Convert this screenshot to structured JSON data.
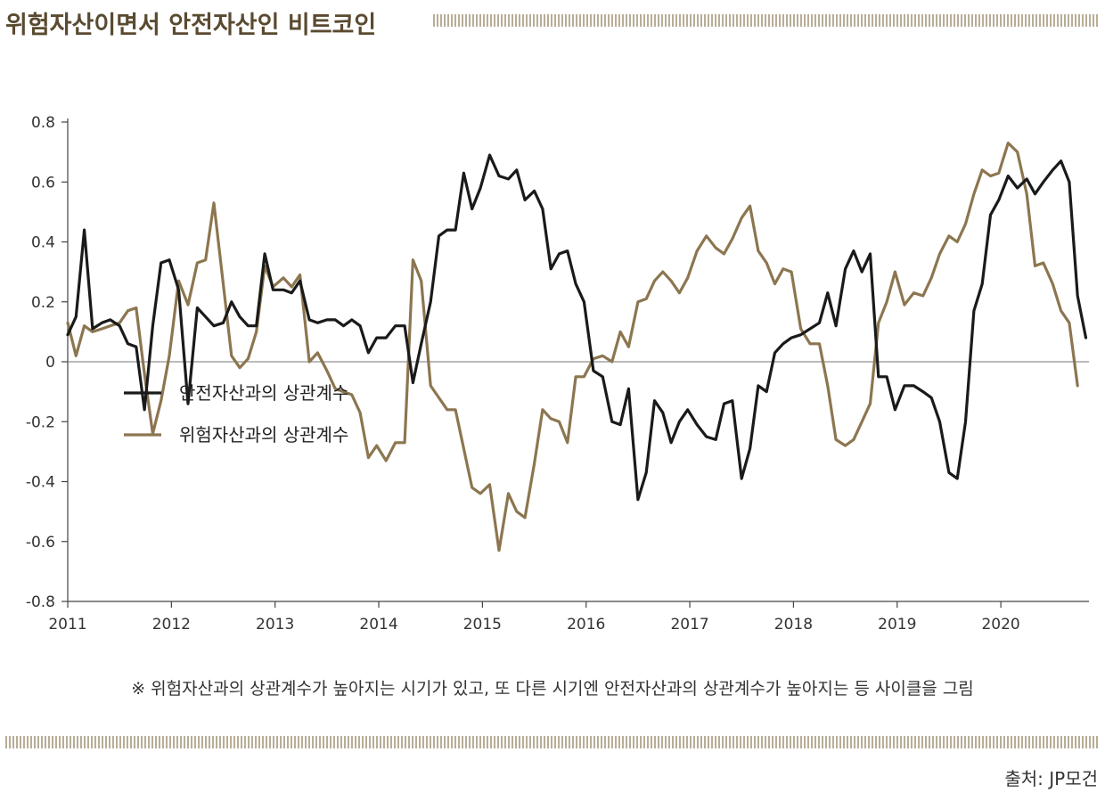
{
  "page_title": "위험자산이면서 안전자산인 비트코인",
  "note": "※ 위험자산과의 상관계수가 높아지는 시기가 있고, 또 다른 시기엔 안전자산과의 상관계수가 높아지는 등 사이클을 그림",
  "source": "출처: JP모건",
  "colors": {
    "safe": "#1a1a1a",
    "risk": "#8c7650",
    "title": "#5a4a30"
  },
  "chart_data": {
    "type": "line",
    "title": "위험자산이면서 안전자산인 비트코인",
    "xlabel": "",
    "ylabel": "",
    "xlim": [
      2011,
      2020.85
    ],
    "ylim": [
      -0.8,
      0.8
    ],
    "x_ticks": [
      2011,
      2012,
      2013,
      2014,
      2015,
      2016,
      2017,
      2018,
      2019,
      2020
    ],
    "y_ticks": [
      0.8,
      0.6,
      0.4,
      0.2,
      0,
      -0.2,
      -0.4,
      -0.6,
      -0.8
    ],
    "y_tick_labels": [
      "0.8",
      "0.6",
      "0.4",
      "0.2",
      "0",
      "-0.2",
      "-0.4",
      "-0.6",
      "-0.8"
    ],
    "legend_position": "middle-left",
    "series": [
      {
        "name": "안전자산과의 상관계수",
        "color": "#1a1a1a",
        "points": [
          [
            2011.0,
            0.09
          ],
          [
            2011.08,
            0.15
          ],
          [
            2011.16,
            0.44
          ],
          [
            2011.24,
            0.11
          ],
          [
            2011.33,
            0.13
          ],
          [
            2011.41,
            0.14
          ],
          [
            2011.5,
            0.12
          ],
          [
            2011.58,
            0.06
          ],
          [
            2011.66,
            0.05
          ],
          [
            2011.74,
            -0.16
          ],
          [
            2011.82,
            0.12
          ],
          [
            2011.9,
            0.33
          ],
          [
            2011.98,
            0.34
          ],
          [
            2012.07,
            0.24
          ],
          [
            2012.16,
            -0.14
          ],
          [
            2012.25,
            0.18
          ],
          [
            2012.33,
            0.15
          ],
          [
            2012.41,
            0.12
          ],
          [
            2012.5,
            0.13
          ],
          [
            2012.58,
            0.2
          ],
          [
            2012.66,
            0.15
          ],
          [
            2012.74,
            0.12
          ],
          [
            2012.82,
            0.12
          ],
          [
            2012.9,
            0.36
          ],
          [
            2012.98,
            0.24
          ],
          [
            2013.08,
            0.24
          ],
          [
            2013.16,
            0.23
          ],
          [
            2013.24,
            0.27
          ],
          [
            2013.33,
            0.14
          ],
          [
            2013.41,
            0.13
          ],
          [
            2013.5,
            0.14
          ],
          [
            2013.58,
            0.14
          ],
          [
            2013.66,
            0.12
          ],
          [
            2013.74,
            0.14
          ],
          [
            2013.82,
            0.12
          ],
          [
            2013.9,
            0.03
          ],
          [
            2013.98,
            0.08
          ],
          [
            2014.07,
            0.08
          ],
          [
            2014.16,
            0.12
          ],
          [
            2014.25,
            0.12
          ],
          [
            2014.33,
            -0.07
          ],
          [
            2014.41,
            0.06
          ],
          [
            2014.5,
            0.2
          ],
          [
            2014.58,
            0.42
          ],
          [
            2014.66,
            0.44
          ],
          [
            2014.74,
            0.44
          ],
          [
            2014.82,
            0.63
          ],
          [
            2014.9,
            0.51
          ],
          [
            2014.98,
            0.58
          ],
          [
            2015.07,
            0.69
          ],
          [
            2015.16,
            0.62
          ],
          [
            2015.25,
            0.61
          ],
          [
            2015.33,
            0.64
          ],
          [
            2015.41,
            0.54
          ],
          [
            2015.5,
            0.57
          ],
          [
            2015.58,
            0.51
          ],
          [
            2015.66,
            0.31
          ],
          [
            2015.74,
            0.36
          ],
          [
            2015.82,
            0.37
          ],
          [
            2015.9,
            0.26
          ],
          [
            2015.98,
            0.2
          ],
          [
            2016.07,
            -0.03
          ],
          [
            2016.16,
            -0.05
          ],
          [
            2016.25,
            -0.2
          ],
          [
            2016.33,
            -0.21
          ],
          [
            2016.41,
            -0.09
          ],
          [
            2016.5,
            -0.46
          ],
          [
            2016.58,
            -0.37
          ],
          [
            2016.66,
            -0.13
          ],
          [
            2016.74,
            -0.17
          ],
          [
            2016.82,
            -0.27
          ],
          [
            2016.9,
            -0.2
          ],
          [
            2016.98,
            -0.16
          ],
          [
            2017.07,
            -0.21
          ],
          [
            2017.16,
            -0.25
          ],
          [
            2017.25,
            -0.26
          ],
          [
            2017.33,
            -0.14
          ],
          [
            2017.41,
            -0.13
          ],
          [
            2017.5,
            -0.39
          ],
          [
            2017.58,
            -0.29
          ],
          [
            2017.66,
            -0.08
          ],
          [
            2017.74,
            -0.1
          ],
          [
            2017.82,
            0.03
          ],
          [
            2017.9,
            0.06
          ],
          [
            2017.98,
            0.08
          ],
          [
            2018.07,
            0.09
          ],
          [
            2018.16,
            0.11
          ],
          [
            2018.25,
            0.13
          ],
          [
            2018.33,
            0.23
          ],
          [
            2018.41,
            0.12
          ],
          [
            2018.5,
            0.31
          ],
          [
            2018.58,
            0.37
          ],
          [
            2018.66,
            0.3
          ],
          [
            2018.74,
            0.36
          ],
          [
            2018.82,
            -0.05
          ],
          [
            2018.9,
            -0.05
          ],
          [
            2018.98,
            -0.16
          ],
          [
            2019.07,
            -0.08
          ],
          [
            2019.16,
            -0.08
          ],
          [
            2019.25,
            -0.1
          ],
          [
            2019.33,
            -0.12
          ],
          [
            2019.41,
            -0.2
          ],
          [
            2019.5,
            -0.37
          ],
          [
            2019.58,
            -0.39
          ],
          [
            2019.66,
            -0.2
          ],
          [
            2019.74,
            0.17
          ],
          [
            2019.82,
            0.26
          ],
          [
            2019.9,
            0.49
          ],
          [
            2019.98,
            0.54
          ],
          [
            2020.07,
            0.62
          ],
          [
            2020.16,
            0.58
          ],
          [
            2020.25,
            0.61
          ],
          [
            2020.33,
            0.56
          ],
          [
            2020.41,
            0.6
          ],
          [
            2020.5,
            0.64
          ],
          [
            2020.58,
            0.67
          ],
          [
            2020.66,
            0.6
          ],
          [
            2020.74,
            0.22
          ],
          [
            2020.82,
            0.08
          ]
        ]
      },
      {
        "name": "위험자산과의 상관계수",
        "color": "#8c7650",
        "points": [
          [
            2011.0,
            0.13
          ],
          [
            2011.08,
            0.02
          ],
          [
            2011.16,
            0.12
          ],
          [
            2011.24,
            0.1
          ],
          [
            2011.33,
            0.11
          ],
          [
            2011.41,
            0.12
          ],
          [
            2011.5,
            0.13
          ],
          [
            2011.58,
            0.17
          ],
          [
            2011.66,
            0.18
          ],
          [
            2011.74,
            -0.04
          ],
          [
            2011.82,
            -0.24
          ],
          [
            2011.9,
            -0.13
          ],
          [
            2011.98,
            0.02
          ],
          [
            2012.07,
            0.27
          ],
          [
            2012.16,
            0.19
          ],
          [
            2012.25,
            0.33
          ],
          [
            2012.33,
            0.34
          ],
          [
            2012.41,
            0.53
          ],
          [
            2012.5,
            0.26
          ],
          [
            2012.58,
            0.02
          ],
          [
            2012.66,
            -0.02
          ],
          [
            2012.74,
            0.01
          ],
          [
            2012.82,
            0.1
          ],
          [
            2012.9,
            0.32
          ],
          [
            2012.98,
            0.25
          ],
          [
            2013.08,
            0.28
          ],
          [
            2013.16,
            0.25
          ],
          [
            2013.24,
            0.29
          ],
          [
            2013.33,
            0.0
          ],
          [
            2013.41,
            0.03
          ],
          [
            2013.5,
            -0.03
          ],
          [
            2013.58,
            -0.09
          ],
          [
            2013.66,
            -0.1
          ],
          [
            2013.74,
            -0.11
          ],
          [
            2013.82,
            -0.17
          ],
          [
            2013.9,
            -0.32
          ],
          [
            2013.98,
            -0.28
          ],
          [
            2014.07,
            -0.33
          ],
          [
            2014.16,
            -0.27
          ],
          [
            2014.25,
            -0.27
          ],
          [
            2014.33,
            0.34
          ],
          [
            2014.41,
            0.27
          ],
          [
            2014.5,
            -0.08
          ],
          [
            2014.58,
            -0.12
          ],
          [
            2014.66,
            -0.16
          ],
          [
            2014.74,
            -0.16
          ],
          [
            2014.82,
            -0.29
          ],
          [
            2014.9,
            -0.42
          ],
          [
            2014.98,
            -0.44
          ],
          [
            2015.07,
            -0.41
          ],
          [
            2015.16,
            -0.63
          ],
          [
            2015.25,
            -0.44
          ],
          [
            2015.33,
            -0.5
          ],
          [
            2015.41,
            -0.52
          ],
          [
            2015.5,
            -0.34
          ],
          [
            2015.58,
            -0.16
          ],
          [
            2015.66,
            -0.19
          ],
          [
            2015.74,
            -0.2
          ],
          [
            2015.82,
            -0.27
          ],
          [
            2015.9,
            -0.05
          ],
          [
            2015.98,
            -0.05
          ],
          [
            2016.07,
            0.01
          ],
          [
            2016.16,
            0.02
          ],
          [
            2016.25,
            0.0
          ],
          [
            2016.33,
            0.1
          ],
          [
            2016.41,
            0.05
          ],
          [
            2016.5,
            0.2
          ],
          [
            2016.58,
            0.21
          ],
          [
            2016.66,
            0.27
          ],
          [
            2016.74,
            0.3
          ],
          [
            2016.82,
            0.27
          ],
          [
            2016.9,
            0.23
          ],
          [
            2016.98,
            0.28
          ],
          [
            2017.07,
            0.37
          ],
          [
            2017.16,
            0.42
          ],
          [
            2017.25,
            0.38
          ],
          [
            2017.33,
            0.36
          ],
          [
            2017.41,
            0.41
          ],
          [
            2017.5,
            0.48
          ],
          [
            2017.58,
            0.52
          ],
          [
            2017.66,
            0.37
          ],
          [
            2017.74,
            0.33
          ],
          [
            2017.82,
            0.26
          ],
          [
            2017.9,
            0.31
          ],
          [
            2017.98,
            0.3
          ],
          [
            2018.07,
            0.11
          ],
          [
            2018.16,
            0.06
          ],
          [
            2018.25,
            0.06
          ],
          [
            2018.33,
            -0.08
          ],
          [
            2018.41,
            -0.26
          ],
          [
            2018.5,
            -0.28
          ],
          [
            2018.58,
            -0.26
          ],
          [
            2018.66,
            -0.2
          ],
          [
            2018.74,
            -0.14
          ],
          [
            2018.82,
            0.13
          ],
          [
            2018.9,
            0.2
          ],
          [
            2018.98,
            0.3
          ],
          [
            2019.07,
            0.19
          ],
          [
            2019.16,
            0.23
          ],
          [
            2019.25,
            0.22
          ],
          [
            2019.33,
            0.28
          ],
          [
            2019.41,
            0.36
          ],
          [
            2019.5,
            0.42
          ],
          [
            2019.58,
            0.4
          ],
          [
            2019.66,
            0.46
          ],
          [
            2019.74,
            0.56
          ],
          [
            2019.82,
            0.64
          ],
          [
            2019.9,
            0.62
          ],
          [
            2019.98,
            0.63
          ],
          [
            2020.07,
            0.73
          ],
          [
            2020.16,
            0.7
          ],
          [
            2020.25,
            0.56
          ],
          [
            2020.33,
            0.32
          ],
          [
            2020.41,
            0.33
          ],
          [
            2020.5,
            0.26
          ],
          [
            2020.58,
            0.17
          ],
          [
            2020.66,
            0.13
          ],
          [
            2020.74,
            -0.08
          ]
        ]
      }
    ]
  }
}
